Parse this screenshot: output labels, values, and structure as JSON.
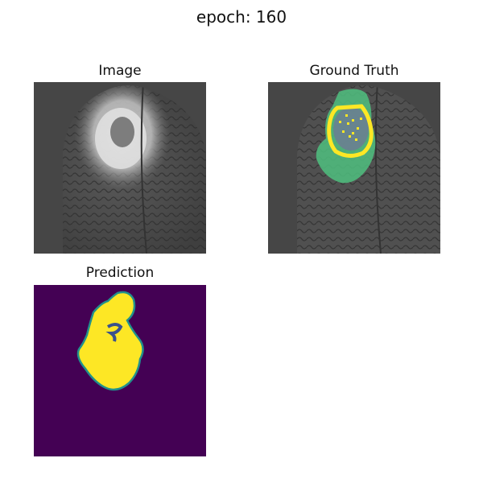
{
  "figure": {
    "title": "epoch: 160"
  },
  "panels": {
    "image": {
      "title": "Image"
    },
    "ground_truth": {
      "title": "Ground Truth"
    },
    "prediction": {
      "title": "Prediction"
    }
  },
  "colors": {
    "background_gray": "#444444",
    "tumor_core_yellow": "#fde725",
    "edema_green": "#4fc07f",
    "prediction_background": "#440154",
    "prediction_edge": "#21918c"
  }
}
